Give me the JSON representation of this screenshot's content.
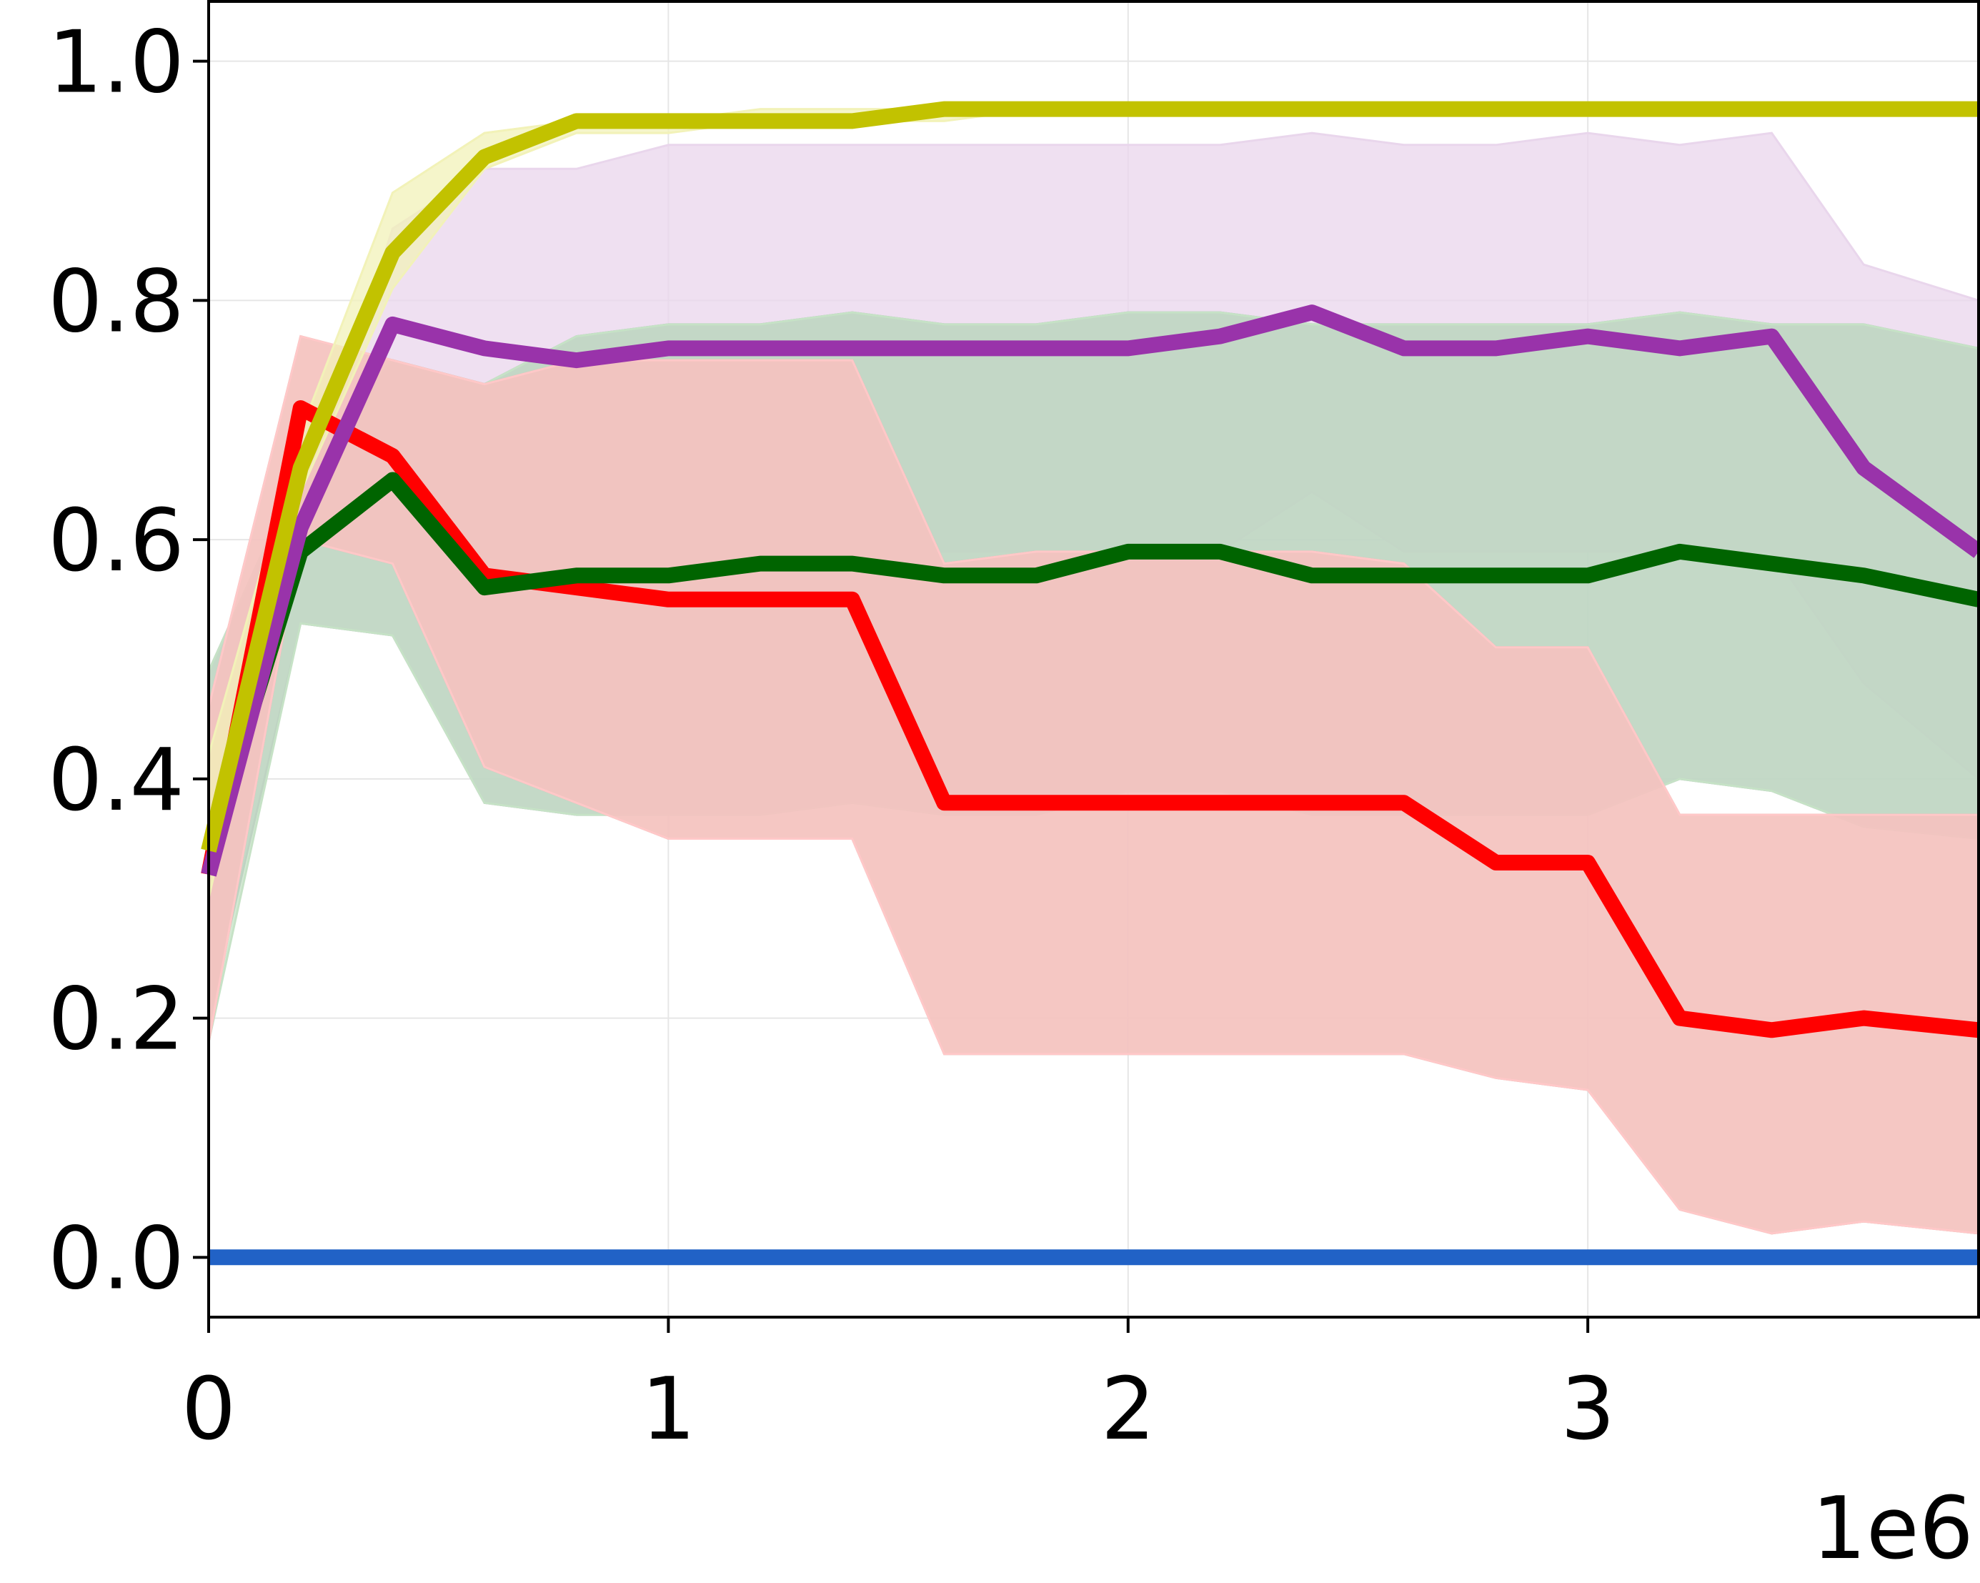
{
  "chart_data": {
    "type": "line",
    "title": "",
    "xlabel": "",
    "ylabel": "",
    "x_offset_label": "1e6",
    "xlim": [
      0,
      3.85
    ],
    "ylim": [
      -0.05,
      1.05
    ],
    "x_ticks": [
      {
        "value": 0,
        "label": "0"
      },
      {
        "value": 1,
        "label": "1"
      },
      {
        "value": 2,
        "label": "2"
      },
      {
        "value": 3,
        "label": "3"
      }
    ],
    "y_ticks": [
      {
        "value": 0.0,
        "label": "0.0"
      },
      {
        "value": 0.2,
        "label": "0.2"
      },
      {
        "value": 0.4,
        "label": "0.4"
      },
      {
        "value": 0.6,
        "label": "0.6"
      },
      {
        "value": 0.8,
        "label": "0.8"
      },
      {
        "value": 1.0,
        "label": "1.0"
      }
    ],
    "grid": true,
    "legend": "none",
    "x": [
      0,
      0.2,
      0.4,
      0.6,
      0.8,
      1.0,
      1.2,
      1.4,
      1.6,
      1.8,
      2.0,
      2.2,
      2.4,
      2.6,
      2.8,
      3.0,
      3.2,
      3.4,
      3.6,
      3.85
    ],
    "series": [
      {
        "color": "#e9d6ec",
        "band_only": true,
        "lower": [
          0.31,
          0.62,
          0.7,
          0.61,
          0.58,
          0.59,
          0.59,
          0.59,
          0.59,
          0.59,
          0.59,
          0.59,
          0.64,
          0.59,
          0.59,
          0.59,
          0.59,
          0.59,
          0.48,
          0.4
        ],
        "upper": [
          0.31,
          0.62,
          0.86,
          0.91,
          0.91,
          0.93,
          0.93,
          0.93,
          0.93,
          0.93,
          0.93,
          0.93,
          0.94,
          0.93,
          0.93,
          0.94,
          0.93,
          0.94,
          0.83,
          0.8
        ]
      },
      {
        "color": "#a9a9b9",
        "band_only": true,
        "lower": [
          0.2,
          0.53,
          0.52,
          0.38,
          0.37,
          0.37,
          0.37,
          0.38,
          0.37,
          0.37,
          0.39,
          0.39,
          0.37,
          0.37,
          0.37,
          0.37,
          0.4,
          0.39,
          0.36,
          0.35
        ],
        "upper": [
          0.49,
          0.66,
          0.75,
          0.73,
          0.77,
          0.78,
          0.78,
          0.79,
          0.78,
          0.78,
          0.79,
          0.79,
          0.78,
          0.78,
          0.78,
          0.78,
          0.79,
          0.78,
          0.78,
          0.76
        ]
      },
      {
        "color": "#c6e2c6",
        "band_only": true,
        "lower": [
          0.18,
          0.53,
          0.52,
          0.38,
          0.37,
          0.37,
          0.37,
          0.38,
          0.37,
          0.37,
          0.39,
          0.39,
          0.37,
          0.37,
          0.37,
          0.37,
          0.4,
          0.39,
          0.36,
          0.35
        ],
        "upper": [
          0.49,
          0.66,
          0.75,
          0.73,
          0.77,
          0.78,
          0.78,
          0.79,
          0.78,
          0.78,
          0.79,
          0.79,
          0.78,
          0.78,
          0.78,
          0.78,
          0.79,
          0.78,
          0.78,
          0.76
        ]
      },
      {
        "color": "#c8ac9c",
        "band_only": true,
        "lower": [
          0.18,
          0.6,
          0.58,
          0.41,
          0.38,
          0.35,
          0.35,
          0.35,
          0.17,
          0.17,
          0.17,
          0.17,
          0.17,
          0.17,
          0.15,
          0.14,
          0.04,
          0.02,
          0.03,
          0.02
        ],
        "upper": [
          0.46,
          0.77,
          0.75,
          0.73,
          0.75,
          0.75,
          0.75,
          0.75,
          0.58,
          0.59,
          0.59,
          0.59,
          0.59,
          0.58,
          0.51,
          0.51,
          0.37,
          0.37,
          0.37,
          0.37
        ]
      },
      {
        "color": "#ffc8c8",
        "band_only": true,
        "lower": [
          0.18,
          0.6,
          0.58,
          0.41,
          0.38,
          0.35,
          0.35,
          0.35,
          0.17,
          0.17,
          0.17,
          0.17,
          0.17,
          0.17,
          0.15,
          0.14,
          0.04,
          0.02,
          0.03,
          0.02
        ],
        "upper": [
          0.46,
          0.77,
          0.75,
          0.73,
          0.75,
          0.75,
          0.75,
          0.75,
          0.58,
          0.59,
          0.59,
          0.59,
          0.59,
          0.58,
          0.51,
          0.51,
          0.37,
          0.37,
          0.37,
          0.37
        ]
      },
      {
        "color": "#f2f2b8",
        "band_only": true,
        "lower": [
          0.3,
          0.64,
          0.81,
          0.91,
          0.94,
          0.94,
          0.95,
          0.95,
          0.95,
          0.96,
          0.96,
          0.96,
          0.96,
          0.96,
          0.96,
          0.96,
          0.96,
          0.96,
          0.96,
          0.96
        ],
        "upper": [
          0.42,
          0.69,
          0.89,
          0.94,
          0.95,
          0.95,
          0.96,
          0.96,
          0.96,
          0.96,
          0.96,
          0.96,
          0.96,
          0.96,
          0.96,
          0.96,
          0.96,
          0.96,
          0.96,
          0.96
        ]
      },
      {
        "color": "#2162c6",
        "values": [
          0,
          0,
          0,
          0,
          0,
          0,
          0,
          0,
          0,
          0,
          0,
          0,
          0,
          0,
          0,
          0,
          0,
          0,
          0,
          0
        ]
      },
      {
        "color": "#ff0000",
        "values": [
          0.32,
          0.71,
          0.67,
          0.57,
          0.56,
          0.55,
          0.55,
          0.55,
          0.38,
          0.38,
          0.38,
          0.38,
          0.38,
          0.38,
          0.33,
          0.33,
          0.2,
          0.19,
          0.2,
          0.19
        ]
      },
      {
        "color": "#006400",
        "values": [
          0.34,
          0.59,
          0.65,
          0.56,
          0.57,
          0.57,
          0.58,
          0.58,
          0.57,
          0.57,
          0.59,
          0.59,
          0.57,
          0.57,
          0.57,
          0.57,
          0.59,
          0.58,
          0.57,
          0.55
        ]
      },
      {
        "color": "#9933aa",
        "values": [
          0.32,
          0.61,
          0.78,
          0.76,
          0.75,
          0.76,
          0.76,
          0.76,
          0.76,
          0.76,
          0.76,
          0.77,
          0.79,
          0.76,
          0.76,
          0.77,
          0.76,
          0.77,
          0.66,
          0.59
        ]
      },
      {
        "color": "#c2c200",
        "values": [
          0.34,
          0.66,
          0.84,
          0.92,
          0.95,
          0.95,
          0.95,
          0.95,
          0.96,
          0.96,
          0.96,
          0.96,
          0.96,
          0.96,
          0.96,
          0.96,
          0.96,
          0.96,
          0.96,
          0.96
        ]
      }
    ]
  }
}
